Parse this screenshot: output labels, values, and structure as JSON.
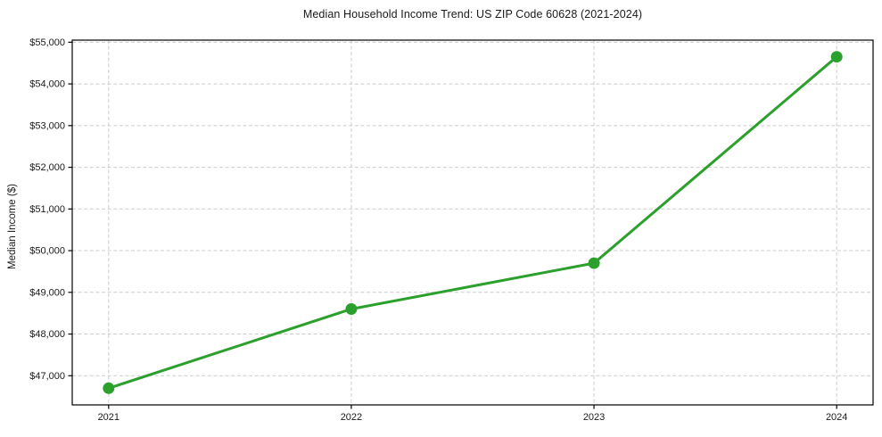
{
  "chart_data": {
    "type": "line",
    "title": "Median Household Income Trend: US ZIP Code 60628 (2021-2024)",
    "xlabel": "",
    "ylabel": "Median Income ($)",
    "x": [
      2021,
      2022,
      2023,
      2024
    ],
    "series": [
      {
        "name": "Median Household Income",
        "values": [
          46700,
          48600,
          49700,
          54650
        ]
      }
    ],
    "xlim": [
      2020.85,
      2024.15
    ],
    "ylim": [
      46300,
      55050
    ],
    "xticks": [
      2021,
      2022,
      2023,
      2024
    ],
    "xtick_labels": [
      "2021",
      "2022",
      "2023",
      "2024"
    ],
    "yticks": [
      47000,
      48000,
      49000,
      50000,
      51000,
      52000,
      53000,
      54000,
      55000
    ],
    "ytick_labels": [
      "$47,000",
      "$48,000",
      "$49,000",
      "$50,000",
      "$51,000",
      "$52,000",
      "$53,000",
      "$54,000",
      "$55,000"
    ],
    "grid": true,
    "legend": "none",
    "colors": {
      "line": "#2ca02c",
      "marker": "#2ca02c",
      "gridline": "#cccccc",
      "spine": "#000000",
      "text": "#1a1a1a",
      "background": "#ffffff"
    }
  }
}
